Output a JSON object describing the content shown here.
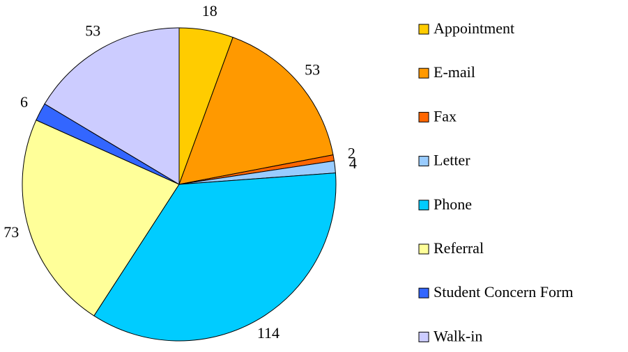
{
  "chart_data": {
    "type": "pie",
    "categories": [
      "Appointment",
      "E-mail",
      "Fax",
      "Letter",
      "Phone",
      "Referral",
      "Student Concern Form",
      "Walk-in"
    ],
    "values": [
      18,
      53,
      2,
      4,
      114,
      73,
      6,
      53
    ],
    "colors": [
      "#ffcc00",
      "#ff9900",
      "#ff6600",
      "#99ccff",
      "#00ccff",
      "#ffff99",
      "#3366ff",
      "#ccccff"
    ],
    "legend": "right"
  }
}
